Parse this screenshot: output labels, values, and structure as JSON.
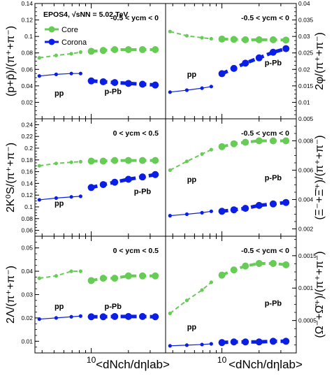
{
  "figure": {
    "header": "EPOS4, √sNN = 5.02 TeV",
    "legend": {
      "placement": "top-left of first panel",
      "core_label": "Core",
      "corona_label": "Corona"
    },
    "colors": {
      "core": "#66cc55",
      "corona": "#0a1ee6",
      "frame": "#000000"
    },
    "x_axis_label": "<dNch/dηlab>",
    "x_scale": "log",
    "x_tick_label": "10"
  },
  "chart_data": [
    {
      "type": "line",
      "panel": "top-left",
      "ylabel": "(p+p̄)/(π⁺+π⁻)",
      "annotation": "-0.5 < ycm < 0",
      "xlim": [
        3.5,
        40
      ],
      "ylim": [
        0,
        0.14
      ],
      "yticks": [
        0.02,
        0.04,
        0.06,
        0.08,
        0.1,
        0.12,
        0.14
      ],
      "text_labels": [
        {
          "text": "pp",
          "x": 5.5,
          "y": 0.028
        },
        {
          "text": "p-Pb",
          "x": 15,
          "y": 0.03
        }
      ],
      "series": [
        {
          "name": "Core (pp)",
          "style": "core-pp",
          "x": [
            3.8,
            5.2,
            6.9,
            8.2
          ],
          "y": [
            0.074,
            0.077,
            0.079,
            0.081
          ]
        },
        {
          "name": "Core (p-Pb)",
          "style": "core-ppb",
          "x": [
            10,
            12.5,
            15.5,
            20,
            26,
            33
          ],
          "y": [
            0.082,
            0.083,
            0.084,
            0.084,
            0.084,
            0.084
          ]
        },
        {
          "name": "Corona (pp)",
          "style": "corona-pp",
          "x": [
            3.8,
            5.2,
            6.9,
            8.2
          ],
          "y": [
            0.052,
            0.054,
            0.055,
            0.055
          ]
        },
        {
          "name": "Corona (p-Pb)",
          "style": "corona-ppb",
          "x": [
            10,
            12.5,
            15.5,
            20,
            26,
            33
          ],
          "y": [
            0.046,
            0.045,
            0.044,
            0.043,
            0.042,
            0.041
          ]
        }
      ]
    },
    {
      "type": "line",
      "panel": "top-right",
      "ylabel": "2φ/(π⁺+π⁻)",
      "annotation": "-0.5 < ycm < 0",
      "xlim": [
        3.5,
        40
      ],
      "ylim": [
        0.005,
        0.04
      ],
      "yticks": [
        0.005,
        0.01,
        0.015,
        0.02,
        0.025,
        0.03,
        0.035,
        0.04
      ],
      "text_labels": [
        {
          "text": "pp",
          "x": 5.7,
          "y": 0.0177
        },
        {
          "text": "p-Pb",
          "x": 26,
          "y": 0.0212
        }
      ],
      "series": [
        {
          "name": "Core (pp)",
          "style": "core-pp",
          "x": [
            3.8,
            5.2,
            6.9,
            8.2
          ],
          "y": [
            0.0315,
            0.0302,
            0.0296,
            0.0293
          ]
        },
        {
          "name": "Core (p-Pb)",
          "style": "core-ppb",
          "x": [
            10,
            12.5,
            15.5,
            20,
            26,
            33
          ],
          "y": [
            0.0292,
            0.0291,
            0.029,
            0.029,
            0.029,
            0.0289
          ]
        },
        {
          "name": "Corona (pp)",
          "style": "corona-pp",
          "x": [
            3.8,
            5.2,
            6.9,
            8.2
          ],
          "y": [
            0.0131,
            0.0137,
            0.0143,
            0.0148
          ]
        },
        {
          "name": "Corona (p-Pb)",
          "style": "corona-ppb",
          "x": [
            10,
            12.5,
            15.5,
            20,
            26,
            33
          ],
          "y": [
            0.0187,
            0.0203,
            0.0219,
            0.0235,
            0.0252,
            0.0263
          ]
        }
      ]
    },
    {
      "type": "line",
      "panel": "middle-left",
      "ylabel": "2K⁰S/(π⁺+π⁻)",
      "annotation": "0 < ycm < 0.5",
      "xlim": [
        3.5,
        40
      ],
      "ylim": [
        0.05,
        0.25
      ],
      "yticks": [
        0.06,
        0.08,
        0.1,
        0.12,
        0.14,
        0.16,
        0.18,
        0.2,
        0.22,
        0.24
      ],
      "text_labels": [
        {
          "text": "pp",
          "x": 5.5,
          "y": 0.102
        },
        {
          "text": "p-Pb",
          "x": 26,
          "y": 0.122
        }
      ],
      "series": [
        {
          "name": "Core (pp)",
          "style": "core-pp",
          "x": [
            3.8,
            5.2,
            6.9,
            8.2
          ],
          "y": [
            0.17,
            0.174,
            0.176,
            0.177
          ]
        },
        {
          "name": "Core (p-Pb)",
          "style": "core-ppb",
          "x": [
            10,
            12.5,
            15.5,
            20,
            26,
            33
          ],
          "y": [
            0.178,
            0.178,
            0.179,
            0.179,
            0.179,
            0.179
          ]
        },
        {
          "name": "Corona (pp)",
          "style": "corona-pp",
          "x": [
            3.8,
            5.2,
            6.9,
            8.2
          ],
          "y": [
            0.112,
            0.115,
            0.117,
            0.118
          ]
        },
        {
          "name": "Corona (p-Pb)",
          "style": "corona-ppb",
          "x": [
            10,
            12.5,
            15.5,
            20,
            26,
            33
          ],
          "y": [
            0.133,
            0.138,
            0.142,
            0.147,
            0.151,
            0.155
          ]
        }
      ]
    },
    {
      "type": "line",
      "panel": "middle-right",
      "ylabel": "(Ξ⁻+Ξ̄⁺)/(π⁺+π⁻)",
      "annotation": "-0.5 < ycm < 0",
      "xlim": [
        3.5,
        40
      ],
      "ylim": [
        0.0015,
        0.0095
      ],
      "yticks": [
        0.002,
        0.004,
        0.006,
        0.008
      ],
      "text_labels": [
        {
          "text": "pp",
          "x": 5.7,
          "y": 0.0052
        },
        {
          "text": "p-Pb",
          "x": 26,
          "y": 0.0053
        }
      ],
      "series": [
        {
          "name": "Core (pp)",
          "style": "core-pp",
          "x": [
            3.8,
            5.2,
            6.9,
            8.2
          ],
          "y": [
            0.006,
            0.0066,
            0.0071,
            0.0074
          ]
        },
        {
          "name": "Core (p-Pb)",
          "style": "core-ppb",
          "x": [
            10,
            12.5,
            15.5,
            20,
            26,
            33
          ],
          "y": [
            0.0076,
            0.0078,
            0.0079,
            0.008,
            0.008,
            0.008
          ]
        },
        {
          "name": "Corona (pp)",
          "style": "corona-pp",
          "x": [
            3.8,
            5.2,
            6.9,
            8.2
          ],
          "y": [
            0.0029,
            0.003,
            0.0031,
            0.0032
          ]
        },
        {
          "name": "Corona (p-Pb)",
          "style": "corona-ppb",
          "x": [
            10,
            12.5,
            15.5,
            20,
            26,
            33
          ],
          "y": [
            0.0032,
            0.0033,
            0.0034,
            0.0036,
            0.0037,
            0.0038
          ]
        }
      ]
    },
    {
      "type": "line",
      "panel": "bottom-left",
      "ylabel": "2Λ/(π⁺+π⁻)",
      "annotation": "0 < ycm < 0.5",
      "xlim": [
        3.5,
        40
      ],
      "ylim": [
        0.005,
        0.055
      ],
      "yticks": [
        0.01,
        0.02,
        0.03,
        0.04,
        0.05
      ],
      "text_labels": [
        {
          "text": "pp",
          "x": 5.5,
          "y": 0.0238
        },
        {
          "text": "p-Pb",
          "x": 15,
          "y": 0.0238
        }
      ],
      "series": [
        {
          "name": "Core (pp)",
          "style": "core-pp",
          "x": [
            3.8,
            5.2,
            6.9,
            8.2
          ],
          "y": [
            0.037,
            0.038,
            0.04,
            0.04
          ]
        },
        {
          "name": "Core (p-Pb)",
          "style": "core-ppb",
          "x": [
            10,
            12.5,
            15.5,
            20,
            26,
            33
          ],
          "y": [
            0.036,
            0.037,
            0.037,
            0.038,
            0.038,
            0.038
          ]
        },
        {
          "name": "Corona (pp)",
          "style": "corona-pp",
          "x": [
            3.8,
            5.2,
            6.9,
            8.2
          ],
          "y": [
            0.0195,
            0.02,
            0.0205,
            0.0208
          ]
        },
        {
          "name": "Corona (p-Pb)",
          "style": "corona-ppb",
          "x": [
            10,
            12.5,
            15.5,
            20,
            26,
            33
          ],
          "y": [
            0.0205,
            0.0205,
            0.0206,
            0.0206,
            0.0206,
            0.0205
          ]
        }
      ]
    },
    {
      "type": "line",
      "panel": "bottom-right",
      "ylabel": "(Ω⁻+Ω̄⁺)/(π⁺+π⁻)",
      "annotation": "-0.5 < ycm < 0",
      "xlim": [
        3.5,
        40
      ],
      "ylim": [
        0.0,
        0.0018
      ],
      "yticks": [
        0.0005,
        0.001,
        0.0015
      ],
      "text_labels": [
        {
          "text": "pp",
          "x": 5.7,
          "y": 0.00036
        },
        {
          "text": "p-Pb",
          "x": 26,
          "y": 0.00073
        }
      ],
      "series": [
        {
          "name": "Core (pp)",
          "style": "core-pp",
          "x": [
            3.8,
            5.2,
            6.9,
            8.2
          ],
          "y": [
            0.00061,
            0.00081,
            0.00097,
            0.00109
          ]
        },
        {
          "name": "Core (p-Pb)",
          "style": "core-ppb",
          "x": [
            10,
            12.5,
            15.5,
            20,
            26,
            33
          ],
          "y": [
            0.0012,
            0.00128,
            0.00134,
            0.00138,
            0.00138,
            0.00136
          ]
        },
        {
          "name": "Corona (pp)",
          "style": "corona-pp",
          "x": [
            3.8,
            5.2,
            6.9,
            8.2
          ],
          "y": [
            0.00011,
            0.00012,
            0.00013,
            0.00014
          ]
        },
        {
          "name": "Corona (p-Pb)",
          "style": "corona-ppb",
          "x": [
            10,
            12.5,
            15.5,
            20,
            26,
            33
          ],
          "y": [
            0.00016,
            0.00017,
            0.00017,
            0.00017,
            0.00018,
            0.00018
          ]
        }
      ]
    }
  ]
}
